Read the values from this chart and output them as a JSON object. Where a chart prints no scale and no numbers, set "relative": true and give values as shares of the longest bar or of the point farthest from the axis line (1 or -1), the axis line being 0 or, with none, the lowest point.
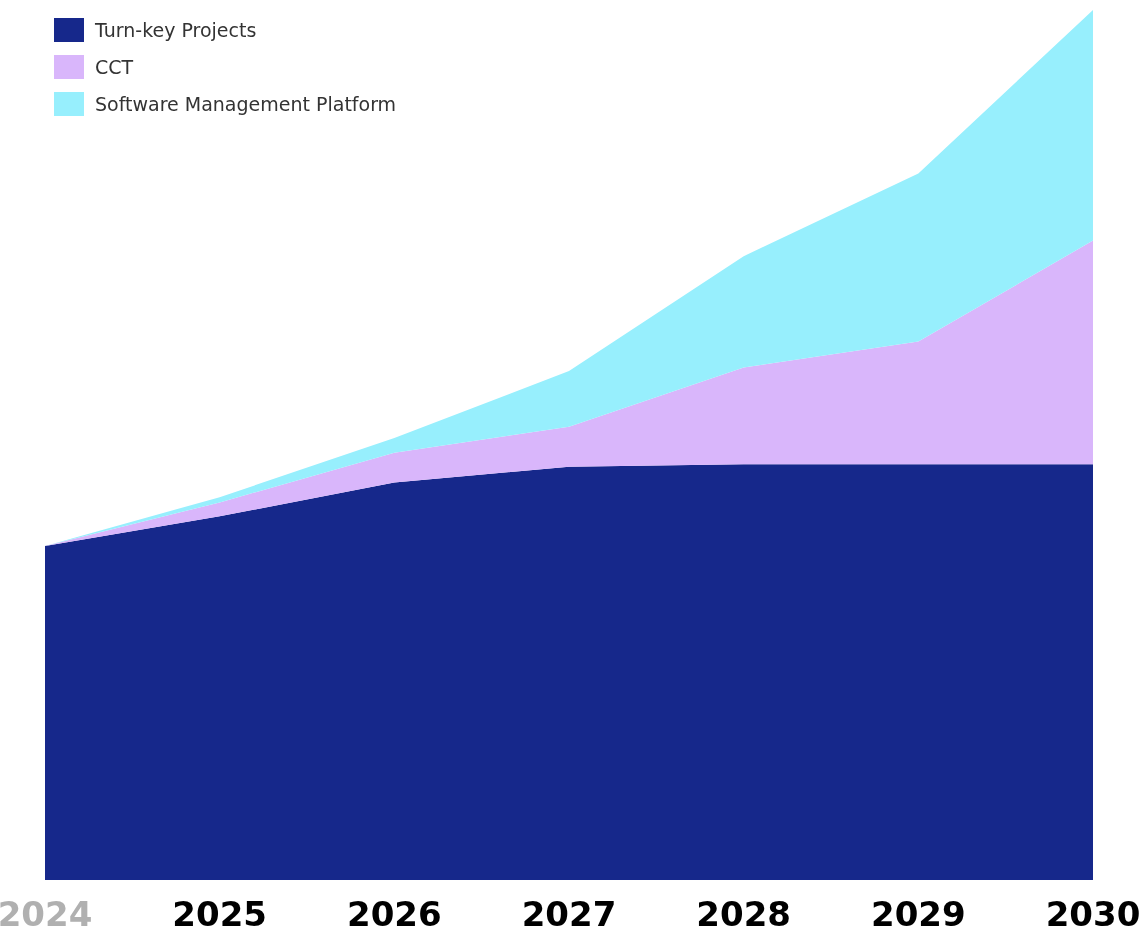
{
  "chart_data": {
    "type": "area",
    "stacked": true,
    "relative": true,
    "legend": "top left",
    "categories": [
      "2024",
      "2025",
      "2026",
      "2027",
      "2028",
      "2029",
      "2030"
    ],
    "series": [
      {
        "name": "Turn-key Projects",
        "color": "#16288b",
        "values": [
          0.384,
          0.418,
          0.457,
          0.475,
          0.478,
          0.478,
          0.478
        ]
      },
      {
        "name": "CCT",
        "color": "#d9b6fb",
        "values": [
          0,
          0.016,
          0.034,
          0.046,
          0.111,
          0.141,
          0.257
        ]
      },
      {
        "name": "Software Management Platform",
        "color": "#97effd",
        "values": [
          0,
          0.006,
          0.017,
          0.064,
          0.128,
          0.193,
          0.265
        ]
      }
    ]
  }
}
